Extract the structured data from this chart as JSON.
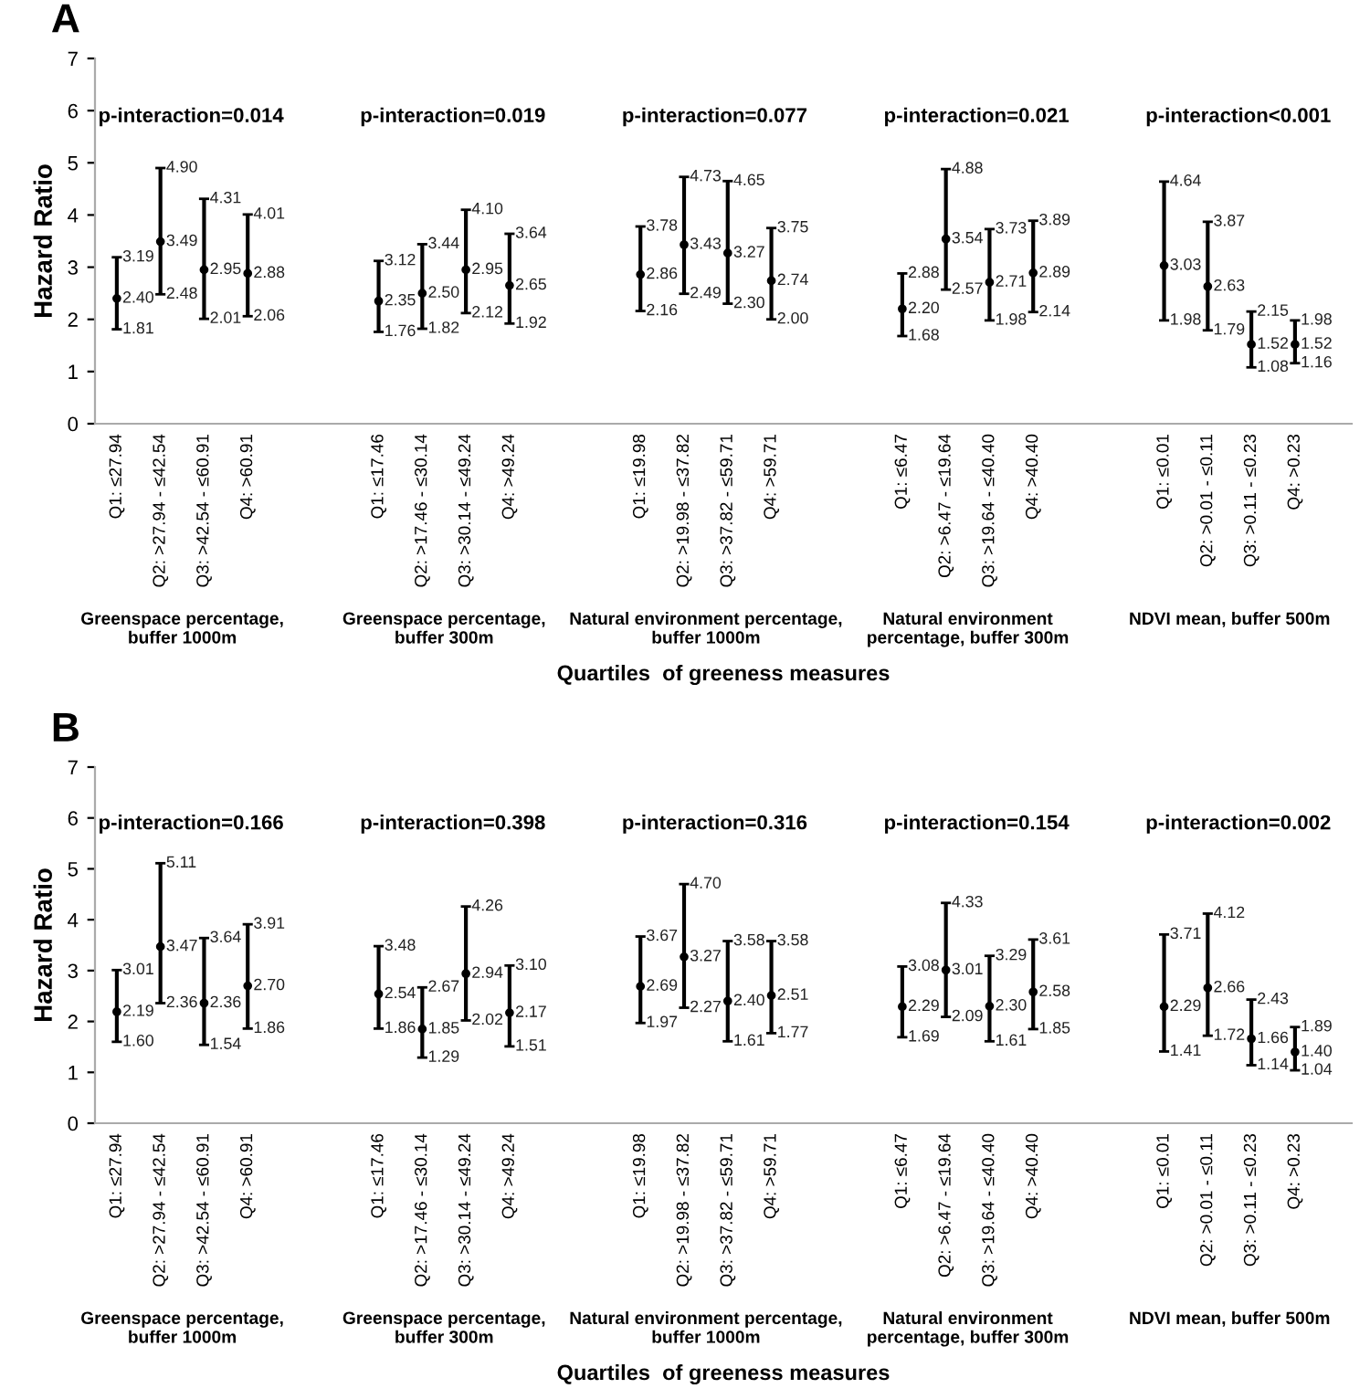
{
  "chart_data": [
    {
      "type": "scatter",
      "title": "A",
      "ylabel": "Hazard Ratio",
      "xlabel": "Quartiles  of greeness measures",
      "categories": [
        "Q1: ≤27.94",
        "Q2: >27.94 - ≤42.54",
        "Q3: >42.54 - ≤60.91",
        "Q4: >60.91",
        null,
        null,
        "Q1: ≤17.46",
        "Q2: >17.46 - ≤30.14",
        "Q3: >30.14 - ≤49.24",
        "Q4: >49.24",
        null,
        null,
        "Q1: ≤19.98",
        "Q2: >19.98 - ≤37.82",
        "Q3: >37.82 - ≤59.71",
        "Q4: >59.71",
        null,
        null,
        "Q1: ≤6.47",
        "Q2: >6.47 - ≤19.64",
        "Q3: >19.64 - ≤40.40",
        "Q4: >40.40",
        null,
        null,
        "Q1: ≤0.01",
        "Q2: >0.01 - ≤0.11",
        "Q3: >0.11 - ≤0.23",
        "Q4: >0.23"
      ],
      "values": [
        2.4,
        3.49,
        2.95,
        2.88,
        null,
        null,
        2.35,
        2.5,
        2.95,
        2.65,
        null,
        null,
        2.86,
        3.43,
        3.27,
        2.74,
        null,
        null,
        2.2,
        3.54,
        2.71,
        2.89,
        null,
        null,
        3.03,
        2.63,
        1.52,
        1.52
      ],
      "value_labels": [
        "2.40",
        "3.49",
        "2.95",
        "2.88",
        null,
        null,
        "2.35",
        "2.50",
        "2.95",
        "2.65",
        null,
        null,
        "2.86",
        "3.43",
        "3.27",
        "2.74",
        null,
        null,
        "2.20",
        "3.54",
        "2.71",
        "2.89",
        null,
        null,
        "3.03",
        "2.63",
        "1.52",
        "1.52"
      ],
      "errors": [
        [
          1.81,
          3.19
        ],
        [
          2.48,
          4.9
        ],
        [
          2.01,
          4.31
        ],
        [
          2.06,
          4.01
        ],
        null,
        null,
        [
          1.76,
          3.12
        ],
        [
          1.82,
          3.44
        ],
        [
          2.12,
          4.1
        ],
        [
          1.92,
          3.64
        ],
        null,
        null,
        [
          2.16,
          3.78
        ],
        [
          2.49,
          4.73
        ],
        [
          2.3,
          4.65
        ],
        [
          2.0,
          3.75
        ],
        null,
        null,
        [
          1.68,
          2.88
        ],
        [
          2.57,
          4.88
        ],
        [
          1.98,
          3.73
        ],
        [
          2.14,
          3.89
        ],
        null,
        null,
        [
          1.98,
          4.64
        ],
        [
          1.79,
          3.87
        ],
        [
          1.08,
          2.15
        ],
        [
          1.16,
          1.98
        ]
      ],
      "color": "#000000",
      "marker": "circle",
      "data_labels": true,
      "grid": false,
      "ylim": [
        0,
        7
      ],
      "yticks": [
        0,
        1,
        2,
        3,
        4,
        5,
        6,
        7
      ],
      "annotations": [
        "p-interaction=0.014",
        "p-interaction=0.019",
        "p-interaction=0.077",
        "p-interaction=0.021",
        "p-interaction<0.001",
        "Greenspace percentage,\nbuffer 1000m",
        "Greenspace percentage,\nbuffer 300m",
        "Natural environment percentage,\nbuffer 1000m",
        "Natural environment\npercentage, buffer 300m",
        "NDVI mean, buffer 500m",
        {
          "text": "1.81",
          "x": "Q1: ≤27.94",
          "y": 1.81
        },
        {
          "text": "3.19",
          "x": "Q1: ≤27.94",
          "y": 3.19
        },
        {
          "text": "2.48",
          "x": "Q2: >27.94 - ≤42.54",
          "y": 2.48
        },
        {
          "text": "4.90",
          "x": "Q2: >27.94 - ≤42.54",
          "y": 4.9
        },
        {
          "text": "2.01",
          "x": "Q3: >42.54 - ≤60.91",
          "y": 2.01
        },
        {
          "text": "4.31",
          "x": "Q3: >42.54 - ≤60.91",
          "y": 4.31
        },
        {
          "text": "2.06",
          "x": "Q4: >60.91",
          "y": 2.06
        },
        {
          "text": "4.01",
          "x": "Q4: >60.91",
          "y": 4.01
        },
        {
          "text": "1.76",
          "x": "Q1: ≤17.46",
          "y": 1.76
        },
        {
          "text": "3.12",
          "x": "Q1: ≤17.46",
          "y": 3.12
        },
        {
          "text": "1.82",
          "x": "Q2: >17.46 - ≤30.14",
          "y": 1.82
        },
        {
          "text": "3.44",
          "x": "Q2: >17.46 - ≤30.14",
          "y": 3.44
        },
        {
          "text": "2.12",
          "x": "Q3: >30.14 - ≤49.24",
          "y": 2.12
        },
        {
          "text": "4.10",
          "x": "Q3: >30.14 - ≤49.24",
          "y": 4.1
        },
        {
          "text": "1.92",
          "x": "Q4: >49.24",
          "y": 1.92
        },
        {
          "text": "3.64",
          "x": "Q4: >49.24",
          "y": 3.64
        },
        {
          "text": "2.16",
          "x": "Q1: ≤19.98",
          "y": 2.16
        },
        {
          "text": "3.78",
          "x": "Q1: ≤19.98",
          "y": 3.78
        },
        {
          "text": "2.49",
          "x": "Q2: >19.98 - ≤37.82",
          "y": 2.49
        },
        {
          "text": "4.73",
          "x": "Q2: >19.98 - ≤37.82",
          "y": 4.73
        },
        {
          "text": "2.30",
          "x": "Q3: >37.82 - ≤59.71",
          "y": 2.3
        },
        {
          "text": "4.65",
          "x": "Q3: >37.82 - ≤59.71",
          "y": 4.65
        },
        {
          "text": "2.00",
          "x": "Q4: >59.71",
          "y": 2.0
        },
        {
          "text": "3.75",
          "x": "Q4: >59.71",
          "y": 3.75
        },
        {
          "text": "1.68",
          "x": "Q1: ≤6.47",
          "y": 1.68
        },
        {
          "text": "2.88",
          "x": "Q1: ≤6.47",
          "y": 2.88
        },
        {
          "text": "2.57",
          "x": "Q2: >6.47 - ≤19.64",
          "y": 2.57
        },
        {
          "text": "4.88",
          "x": "Q2: >6.47 - ≤19.64",
          "y": 4.88
        },
        {
          "text": "1.98",
          "x": "Q3: >19.64 - ≤40.40",
          "y": 1.98
        },
        {
          "text": "3.73",
          "x": "Q3: >19.64 - ≤40.40",
          "y": 3.73
        },
        {
          "text": "2.14",
          "x": "Q4: >40.40",
          "y": 2.14
        },
        {
          "text": "3.89",
          "x": "Q4: >40.40",
          "y": 3.89
        },
        {
          "text": "1.98",
          "x": "Q1: ≤0.01",
          "y": 1.98
        },
        {
          "text": "4.64",
          "x": "Q1: ≤0.01",
          "y": 4.64
        },
        {
          "text": "1.79",
          "x": "Q2: >0.01 - ≤0.11",
          "y": 1.79
        },
        {
          "text": "3.87",
          "x": "Q2: >0.01 - ≤0.11",
          "y": 3.87
        },
        {
          "text": "1.08",
          "x": "Q3: >0.11 - ≤0.23",
          "y": 1.08
        },
        {
          "text": "2.15",
          "x": "Q3: >0.11 - ≤0.23",
          "y": 2.15
        },
        {
          "text": "1.16",
          "x": "Q4: >0.23",
          "y": 1.16
        },
        {
          "text": "1.98",
          "x": "Q4: >0.23",
          "y": 1.98
        }
      ]
    },
    {
      "type": "scatter",
      "title": "B",
      "ylabel": "Hazard Ratio",
      "xlabel": "Quartiles  of greeness measures",
      "categories": [
        "Q1: ≤27.94",
        "Q2: >27.94 - ≤42.54",
        "Q3: >42.54 - ≤60.91",
        "Q4: >60.91",
        null,
        null,
        "Q1: ≤17.46",
        "Q2: >17.46 - ≤30.14",
        "Q3: >30.14 - ≤49.24",
        "Q4: >49.24",
        null,
        null,
        "Q1: ≤19.98",
        "Q2: >19.98 - ≤37.82",
        "Q3: >37.82 - ≤59.71",
        "Q4: >59.71",
        null,
        null,
        "Q1: ≤6.47",
        "Q2: >6.47 - ≤19.64",
        "Q3: >19.64 - ≤40.40",
        "Q4: >40.40",
        null,
        null,
        "Q1: ≤0.01",
        "Q2: >0.01 - ≤0.11",
        "Q3: >0.11 - ≤0.23",
        "Q4: >0.23"
      ],
      "values": [
        2.19,
        3.47,
        2.36,
        2.7,
        null,
        null,
        2.54,
        1.85,
        2.94,
        2.17,
        null,
        null,
        2.69,
        3.27,
        2.4,
        2.51,
        null,
        null,
        2.29,
        3.01,
        2.3,
        2.58,
        null,
        null,
        2.29,
        2.66,
        1.66,
        1.4
      ],
      "value_labels": [
        "2.19",
        "3.47",
        "2.36",
        "2.70",
        null,
        null,
        "2.54",
        "1.85",
        "2.94",
        "2.17",
        null,
        null,
        "2.69",
        "3.27",
        "2.40",
        "2.51",
        null,
        null,
        "2.29",
        "3.01",
        "2.30",
        "2.58",
        null,
        null,
        "2.29",
        "2.66",
        "1.66",
        "1.40"
      ],
      "errors": [
        [
          1.6,
          3.01
        ],
        [
          2.36,
          5.11
        ],
        [
          1.54,
          3.64
        ],
        [
          1.86,
          3.91
        ],
        null,
        null,
        [
          1.86,
          3.48
        ],
        [
          1.29,
          2.67
        ],
        [
          2.02,
          4.26
        ],
        [
          1.51,
          3.1
        ],
        null,
        null,
        [
          1.97,
          3.67
        ],
        [
          2.27,
          4.7
        ],
        [
          1.61,
          3.58
        ],
        [
          1.77,
          3.58
        ],
        null,
        null,
        [
          1.69,
          3.08
        ],
        [
          2.09,
          4.33
        ],
        [
          1.61,
          3.29
        ],
        [
          1.85,
          3.61
        ],
        null,
        null,
        [
          1.41,
          3.71
        ],
        [
          1.72,
          4.12
        ],
        [
          1.14,
          2.43
        ],
        [
          1.04,
          1.89
        ]
      ],
      "color": "#000000",
      "marker": "circle",
      "data_labels": true,
      "grid": false,
      "ylim": [
        0,
        7
      ],
      "yticks": [
        0,
        1,
        2,
        3,
        4,
        5,
        6,
        7
      ],
      "annotations": [
        "p-interaction=0.166",
        "p-interaction=0.398",
        "p-interaction=0.316",
        "p-interaction=0.154",
        "p-interaction=0.002",
        "Greenspace percentage,\nbuffer 1000m",
        "Greenspace percentage,\nbuffer 300m",
        "Natural environment percentage,\nbuffer 1000m",
        "Natural environment\npercentage, buffer 300m",
        "NDVI mean, buffer 500m",
        {
          "text": "1.60",
          "x": "Q1: ≤27.94",
          "y": 1.6
        },
        {
          "text": "3.01",
          "x": "Q1: ≤27.94",
          "y": 3.01
        },
        {
          "text": "2.36",
          "x": "Q2: >27.94 - ≤42.54",
          "y": 2.36
        },
        {
          "text": "5.11",
          "x": "Q2: >27.94 - ≤42.54",
          "y": 5.11
        },
        {
          "text": "1.54",
          "x": "Q3: >42.54 - ≤60.91",
          "y": 1.54
        },
        {
          "text": "3.64",
          "x": "Q3: >42.54 - ≤60.91",
          "y": 3.64
        },
        {
          "text": "1.86",
          "x": "Q4: >60.91",
          "y": 1.86
        },
        {
          "text": "3.91",
          "x": "Q4: >60.91",
          "y": 3.91
        },
        {
          "text": "1.86",
          "x": "Q1: ≤17.46",
          "y": 1.86
        },
        {
          "text": "3.48",
          "x": "Q1: ≤17.46",
          "y": 3.48
        },
        {
          "text": "1.29",
          "x": "Q2: >17.46 - ≤30.14",
          "y": 1.29
        },
        {
          "text": "2.67",
          "x": "Q2: >17.46 - ≤30.14",
          "y": 2.67
        },
        {
          "text": "2.02",
          "x": "Q3: >30.14 - ≤49.24",
          "y": 2.02
        },
        {
          "text": "4.26",
          "x": "Q3: >30.14 - ≤49.24",
          "y": 4.26
        },
        {
          "text": "1.51",
          "x": "Q4: >49.24",
          "y": 1.51
        },
        {
          "text": "3.10",
          "x": "Q4: >49.24",
          "y": 3.1
        },
        {
          "text": "1.97",
          "x": "Q1: ≤19.98",
          "y": 1.97
        },
        {
          "text": "3.67",
          "x": "Q1: ≤19.98",
          "y": 3.67
        },
        {
          "text": "2.27",
          "x": "Q2: >19.98 - ≤37.82",
          "y": 2.27
        },
        {
          "text": "4.70",
          "x": "Q2: >19.98 - ≤37.82",
          "y": 4.7
        },
        {
          "text": "1.61",
          "x": "Q3: >37.82 - ≤59.71",
          "y": 1.61
        },
        {
          "text": "3.58",
          "x": "Q3: >37.82 - ≤59.71",
          "y": 3.58
        },
        {
          "text": "1.77",
          "x": "Q4: >59.71",
          "y": 1.77
        },
        {
          "text": "3.58",
          "x": "Q4: >59.71",
          "y": 3.58
        },
        {
          "text": "1.69",
          "x": "Q1: ≤6.47",
          "y": 1.69
        },
        {
          "text": "3.08",
          "x": "Q1: ≤6.47",
          "y": 3.08
        },
        {
          "text": "2.09",
          "x": "Q2: >6.47 - ≤19.64",
          "y": 2.09
        },
        {
          "text": "4.33",
          "x": "Q2: >6.47 - ≤19.64",
          "y": 4.33
        },
        {
          "text": "1.61",
          "x": "Q3: >19.64 - ≤40.40",
          "y": 1.61
        },
        {
          "text": "3.29",
          "x": "Q3: >19.64 - ≤40.40",
          "y": 3.29
        },
        {
          "text": "1.85",
          "x": "Q4: >40.40",
          "y": 1.85
        },
        {
          "text": "3.61",
          "x": "Q4: >40.40",
          "y": 3.61
        },
        {
          "text": "1.41",
          "x": "Q1: ≤0.01",
          "y": 1.41
        },
        {
          "text": "3.71",
          "x": "Q1: ≤0.01",
          "y": 3.71
        },
        {
          "text": "1.72",
          "x": "Q2: >0.01 - ≤0.11",
          "y": 1.72
        },
        {
          "text": "4.12",
          "x": "Q2: >0.01 - ≤0.11",
          "y": 4.12
        },
        {
          "text": "1.14",
          "x": "Q3: >0.11 - ≤0.23",
          "y": 1.14
        },
        {
          "text": "2.43",
          "x": "Q3: >0.11 - ≤0.23",
          "y": 2.43
        },
        {
          "text": "1.04",
          "x": "Q4: >0.23",
          "y": 1.04
        },
        {
          "text": "1.89",
          "x": "Q4: >0.23",
          "y": 1.89
        }
      ]
    }
  ]
}
